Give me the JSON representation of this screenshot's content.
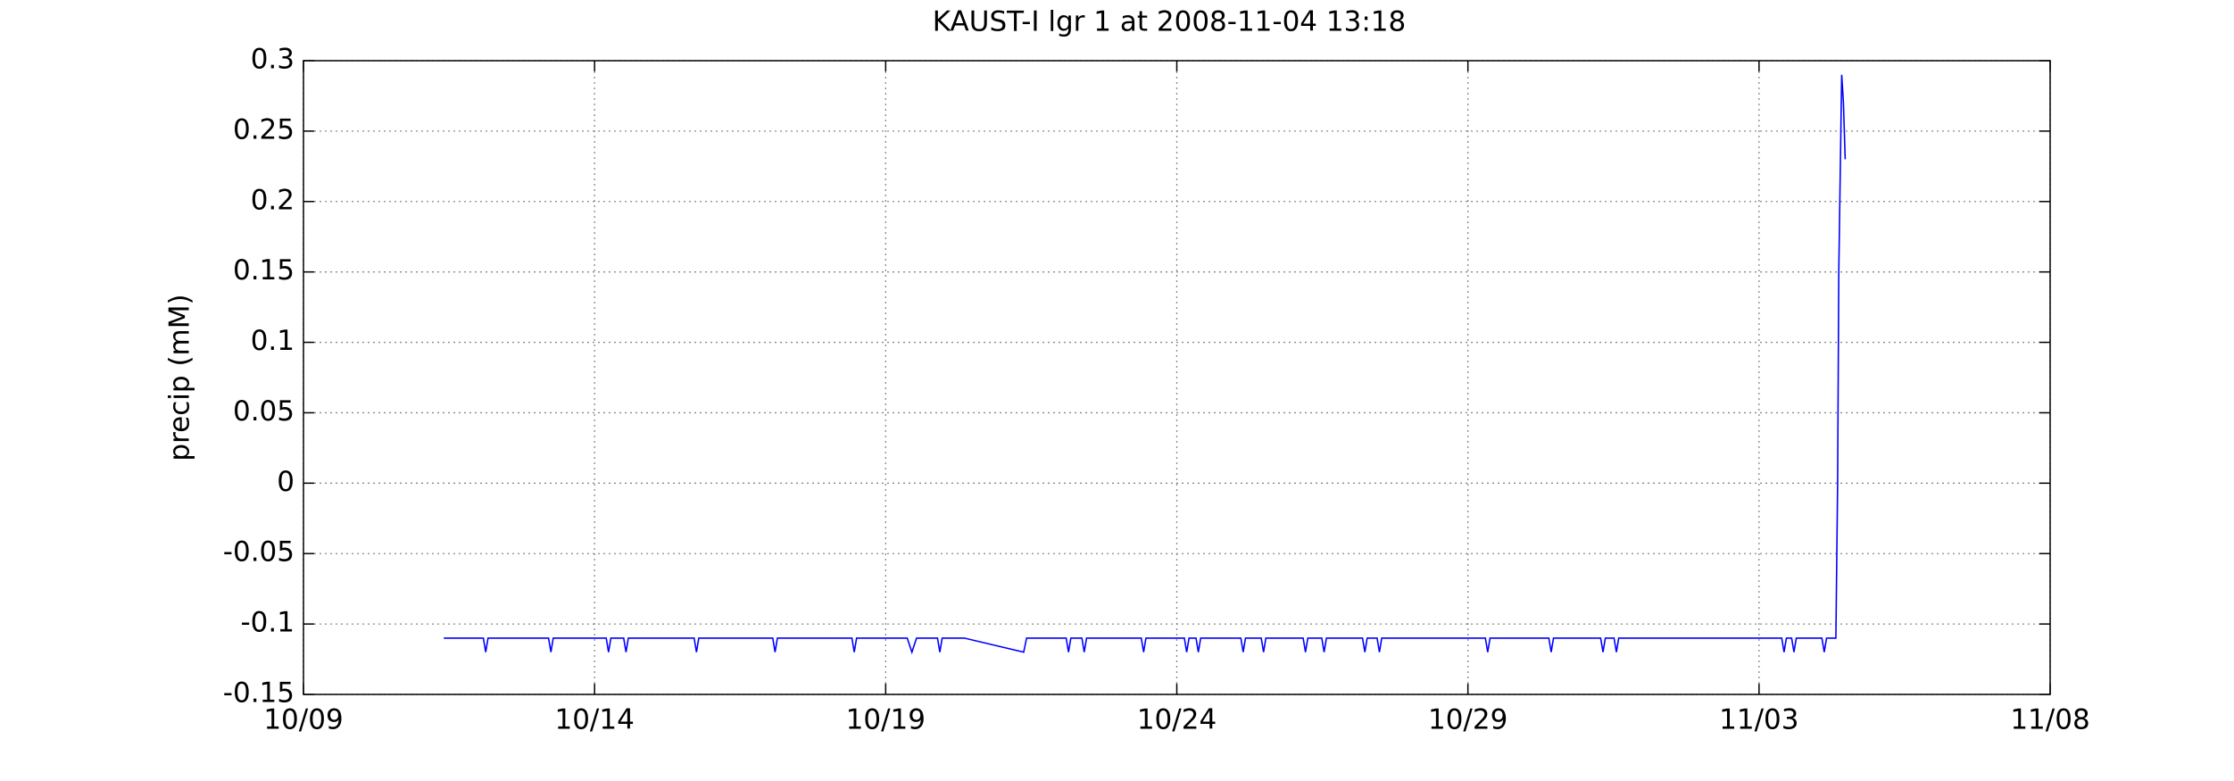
{
  "chart_data": {
    "type": "line",
    "title": "KAUST-I lgr 1 at 2008-11-04 13:18",
    "y_label": "precip (mM)",
    "color": "#0000ff",
    "grid": true,
    "xlim": [
      283,
      313
    ],
    "xticks": [
      {
        "value": 283,
        "label": "10/09"
      },
      {
        "value": 288,
        "label": "10/14"
      },
      {
        "value": 293,
        "label": "10/19"
      },
      {
        "value": 298,
        "label": "10/24"
      },
      {
        "value": 303,
        "label": "10/29"
      },
      {
        "value": 308,
        "label": "11/03"
      },
      {
        "value": 313,
        "label": "11/08"
      }
    ],
    "ylim": [
      -0.15,
      0.3
    ],
    "yticks": [
      -0.15,
      -0.1,
      -0.05,
      0,
      0.05,
      0.1,
      0.15,
      0.2,
      0.25,
      0.3
    ],
    "x": [
      285.41,
      286.09,
      286.13,
      286.17,
      287.21,
      287.25,
      287.29,
      288.2,
      288.24,
      288.28,
      288.5,
      288.54,
      288.58,
      289.71,
      289.75,
      289.79,
      291.06,
      291.1,
      291.14,
      292.42,
      292.46,
      292.5,
      293.37,
      293.45,
      293.53,
      293.89,
      293.93,
      293.97,
      294.35,
      295.37,
      295.42,
      296.1,
      296.14,
      296.18,
      296.37,
      296.41,
      296.45,
      297.39,
      297.43,
      297.47,
      298.13,
      298.17,
      298.21,
      298.33,
      298.37,
      298.41,
      299.1,
      299.14,
      299.18,
      299.45,
      299.49,
      299.53,
      300.17,
      300.21,
      300.25,
      300.49,
      300.53,
      300.57,
      301.19,
      301.23,
      301.27,
      301.44,
      301.48,
      301.52,
      303.3,
      303.34,
      303.38,
      304.39,
      304.43,
      304.47,
      305.28,
      305.32,
      305.36,
      305.51,
      305.55,
      305.59,
      308.39,
      308.43,
      308.47,
      308.56,
      308.6,
      308.64,
      309.08,
      309.12,
      309.16,
      309.32,
      309.35,
      309.37,
      309.42,
      309.45,
      309.48
    ],
    "values": [
      -0.11,
      -0.11,
      -0.12,
      -0.11,
      -0.11,
      -0.12,
      -0.11,
      -0.11,
      -0.12,
      -0.11,
      -0.11,
      -0.12,
      -0.11,
      -0.11,
      -0.12,
      -0.11,
      -0.11,
      -0.12,
      -0.11,
      -0.11,
      -0.12,
      -0.11,
      -0.11,
      -0.12,
      -0.11,
      -0.11,
      -0.12,
      -0.11,
      -0.11,
      -0.12,
      -0.11,
      -0.11,
      -0.12,
      -0.11,
      -0.11,
      -0.12,
      -0.11,
      -0.11,
      -0.12,
      -0.11,
      -0.11,
      -0.12,
      -0.11,
      -0.11,
      -0.12,
      -0.11,
      -0.11,
      -0.12,
      -0.11,
      -0.11,
      -0.12,
      -0.11,
      -0.11,
      -0.12,
      -0.11,
      -0.11,
      -0.12,
      -0.11,
      -0.11,
      -0.12,
      -0.11,
      -0.11,
      -0.12,
      -0.11,
      -0.11,
      -0.12,
      -0.11,
      -0.11,
      -0.12,
      -0.11,
      -0.11,
      -0.12,
      -0.11,
      -0.11,
      -0.12,
      -0.11,
      -0.11,
      -0.12,
      -0.11,
      -0.11,
      -0.12,
      -0.11,
      -0.11,
      -0.12,
      -0.11,
      -0.11,
      0,
      0.15,
      0.29,
      0.27,
      0.23
    ]
  }
}
